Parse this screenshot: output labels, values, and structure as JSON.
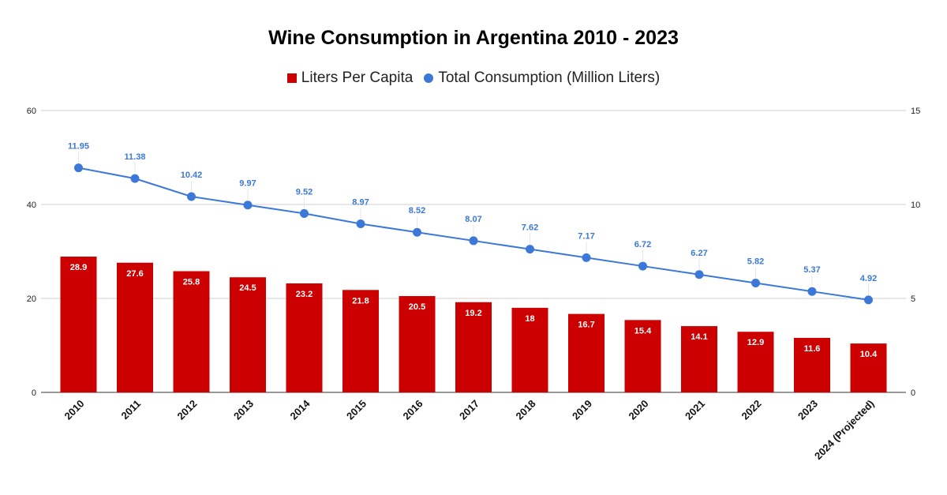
{
  "chart_data": {
    "type": "bar+line",
    "title": "Wine Consumption in Argentina 2010 - 2023",
    "categories": [
      "2010",
      "2011",
      "2012",
      "2013",
      "2014",
      "2015",
      "2016",
      "2017",
      "2018",
      "2019",
      "2020",
      "2021",
      "2022",
      "2023",
      "2024 (Projected)"
    ],
    "series": [
      {
        "name": "Liters Per Capita",
        "type": "bar",
        "axis": "left",
        "color": "#cc0000",
        "values": [
          28.9,
          27.6,
          25.8,
          24.5,
          23.2,
          21.8,
          20.5,
          19.2,
          18,
          16.7,
          15.4,
          14.1,
          12.9,
          11.6,
          10.4
        ]
      },
      {
        "name": "Total Consumption (Million Liters)",
        "type": "line",
        "axis": "right",
        "color": "#3c78d8",
        "values": [
          11.95,
          11.38,
          10.42,
          9.97,
          9.52,
          8.97,
          8.52,
          8.07,
          7.62,
          7.17,
          6.72,
          6.27,
          5.82,
          5.37,
          4.92
        ]
      }
    ],
    "left_axis": {
      "ylim": [
        0,
        60
      ],
      "ticks": [
        0,
        20,
        40,
        60
      ]
    },
    "right_axis": {
      "ylim": [
        0,
        15
      ],
      "ticks": [
        0,
        5,
        10,
        15
      ]
    },
    "grid": true,
    "legend_position": "top",
    "data_labels": true
  }
}
